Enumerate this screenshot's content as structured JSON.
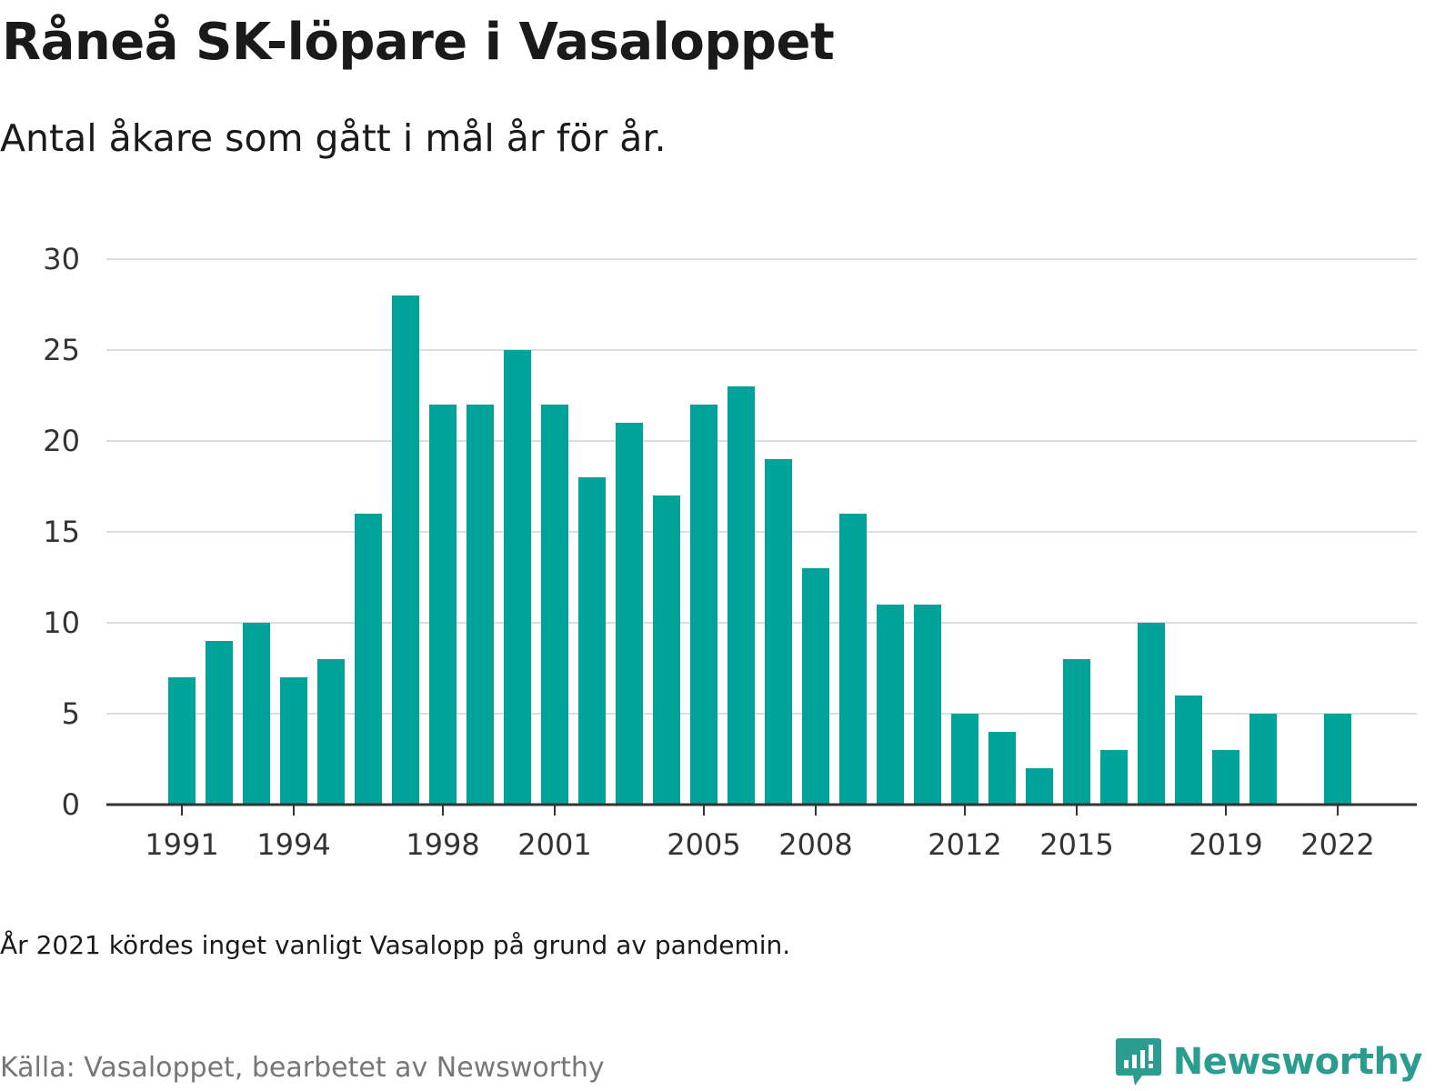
{
  "header": {
    "title": "Råneå SK-löpare i Vasaloppet",
    "subtitle": "Antal åkare som gått i mål år för år."
  },
  "footer": {
    "note": "År 2021 kördes inget vanligt Vasalopp på grund av pandemin.",
    "source": "Källa: Vasaloppet, bearbetet av Newsworthy",
    "brand": "Newsworthy"
  },
  "colors": {
    "bar": "#00a39a",
    "grid": "#dddddd",
    "axis": "#333333",
    "brand": "#2a9d8f"
  },
  "chart_data": {
    "type": "bar",
    "title": "Råneå SK-löpare i Vasaloppet",
    "subtitle": "Antal åkare som gått i mål år för år.",
    "xlabel": "",
    "ylabel": "",
    "ylim": [
      0,
      30
    ],
    "yticks": [
      0,
      5,
      10,
      15,
      20,
      25,
      30
    ],
    "xticks": [
      1991,
      1994,
      1998,
      2001,
      2005,
      2008,
      2012,
      2015,
      2019,
      2022
    ],
    "grid": true,
    "legend": "none",
    "categories": [
      1991,
      1992,
      1993,
      1994,
      1995,
      1996,
      1997,
      1998,
      1999,
      2000,
      2001,
      2002,
      2003,
      2004,
      2005,
      2006,
      2007,
      2008,
      2009,
      2010,
      2011,
      2012,
      2013,
      2014,
      2015,
      2016,
      2017,
      2018,
      2019,
      2020,
      2021,
      2022
    ],
    "values": [
      7,
      9,
      10,
      7,
      8,
      16,
      28,
      22,
      22,
      25,
      22,
      18,
      21,
      17,
      22,
      23,
      19,
      13,
      16,
      11,
      11,
      5,
      4,
      2,
      8,
      3,
      10,
      6,
      3,
      5,
      0,
      5
    ]
  }
}
